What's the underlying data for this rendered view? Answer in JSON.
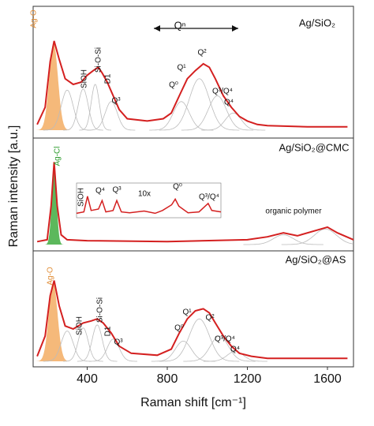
{
  "chart_data": [
    {
      "type": "line",
      "title": "Ag/SiO₂",
      "y_label": "Raman intensity [a.u.]",
      "xlim": [
        130,
        1730
      ],
      "ylim": [
        0,
        100
      ],
      "color": "#d42020",
      "x": [
        150,
        190,
        215,
        235,
        260,
        290,
        330,
        370,
        400,
        430,
        455,
        475,
        500,
        530,
        560,
        600,
        700,
        780,
        820,
        860,
        900,
        940,
        980,
        1010,
        1040,
        1080,
        1120,
        1160,
        1200,
        1250,
        1300,
        1500,
        1700
      ],
      "values": [
        5,
        20,
        60,
        78,
        62,
        45,
        40,
        42,
        48,
        52,
        55,
        50,
        42,
        30,
        18,
        10,
        8,
        10,
        15,
        30,
        45,
        52,
        58,
        55,
        45,
        30,
        20,
        12,
        8,
        5,
        4,
        3,
        3
      ],
      "components": [
        {
          "center": 232,
          "height": 76,
          "width": 22,
          "color": "#f5b97a"
        },
        {
          "center": 300,
          "height": 35,
          "width": 30,
          "color": "#bbbbbb"
        },
        {
          "center": 380,
          "height": 36,
          "width": 25,
          "color": "#bbbbbb"
        },
        {
          "center": 440,
          "height": 40,
          "width": 20,
          "color": "#bbbbbb"
        },
        {
          "center": 520,
          "height": 25,
          "width": 30,
          "color": "#bbbbbb"
        },
        {
          "center": 870,
          "height": 25,
          "width": 40,
          "color": "#bbbbbb"
        },
        {
          "center": 960,
          "height": 45,
          "width": 50,
          "color": "#bbbbbb"
        },
        {
          "center": 1050,
          "height": 30,
          "width": 45,
          "color": "#bbbbbb"
        },
        {
          "center": 1130,
          "height": 15,
          "width": 40,
          "color": "#bbbbbb"
        }
      ],
      "annotations": [
        "Ag-O",
        "SiOH",
        "Si-O-Si",
        "D1",
        "Q³",
        "Qⁿ",
        "Q⁰",
        "Q¹",
        "Q²",
        "Q³/Q⁴",
        "Q⁴"
      ]
    },
    {
      "type": "line",
      "title": "Ag/SiO₂@CMC",
      "xlim": [
        130,
        1730
      ],
      "ylim": [
        0,
        100
      ],
      "color": "#d42020",
      "x": [
        150,
        200,
        220,
        235,
        250,
        270,
        300,
        400,
        800,
        1200,
        1300,
        1380,
        1450,
        1550,
        1600,
        1650,
        1730
      ],
      "values": [
        3,
        5,
        40,
        85,
        40,
        10,
        5,
        4,
        3,
        5,
        8,
        12,
        9,
        15,
        18,
        12,
        5
      ],
      "components": [
        {
          "center": 235,
          "height": 84,
          "width": 12,
          "color": "#5cb85c"
        },
        {
          "center": 1380,
          "height": 10,
          "width": 50,
          "color": "#bbbbbb"
        },
        {
          "center": 1590,
          "height": 16,
          "width": 55,
          "color": "#bbbbbb"
        }
      ],
      "annotations": [
        "Ag-Cl",
        "organic polymer"
      ],
      "inset": {
        "label": "10x",
        "xlim": [
          330,
          1120
        ],
        "ylim": [
          0,
          100
        ],
        "x": [
          330,
          370,
          390,
          410,
          450,
          470,
          490,
          530,
          550,
          575,
          620,
          700,
          760,
          800,
          850,
          870,
          890,
          940,
          1000,
          1050,
          1070,
          1120
        ],
        "values": [
          10,
          15,
          70,
          20,
          25,
          55,
          15,
          20,
          55,
          15,
          12,
          18,
          10,
          20,
          40,
          60,
          35,
          12,
          15,
          45,
          20,
          15
        ],
        "annotations": [
          "SiOH",
          "Q⁴",
          "Q³",
          "Q⁰",
          "Q³/Q⁴"
        ]
      }
    },
    {
      "type": "line",
      "title": "Ag/SiO₂@AS",
      "x_label": "Raman shift [cm⁻¹]",
      "xlim": [
        130,
        1730
      ],
      "ylim": [
        0,
        100
      ],
      "color": "#d42020",
      "xticks": [
        400,
        800,
        1200,
        1600
      ],
      "x": [
        150,
        190,
        215,
        235,
        260,
        290,
        330,
        380,
        420,
        450,
        480,
        520,
        560,
        620,
        750,
        820,
        860,
        900,
        940,
        980,
        1010,
        1040,
        1080,
        1120,
        1160,
        1220,
        1300,
        1700
      ],
      "values": [
        5,
        25,
        65,
        80,
        55,
        35,
        32,
        38,
        40,
        42,
        38,
        28,
        15,
        8,
        6,
        12,
        28,
        42,
        50,
        52,
        48,
        38,
        25,
        15,
        8,
        5,
        3,
        3
      ],
      "components": [
        {
          "center": 230,
          "height": 78,
          "width": 22,
          "color": "#f5b97a"
        },
        {
          "center": 300,
          "height": 30,
          "width": 30,
          "color": "#bbbbbb"
        },
        {
          "center": 380,
          "height": 33,
          "width": 25,
          "color": "#bbbbbb"
        },
        {
          "center": 450,
          "height": 36,
          "width": 25,
          "color": "#bbbbbb"
        },
        {
          "center": 530,
          "height": 22,
          "width": 30,
          "color": "#bbbbbb"
        },
        {
          "center": 880,
          "height": 20,
          "width": 40,
          "color": "#bbbbbb"
        },
        {
          "center": 960,
          "height": 42,
          "width": 50,
          "color": "#bbbbbb"
        },
        {
          "center": 1060,
          "height": 25,
          "width": 45,
          "color": "#bbbbbb"
        },
        {
          "center": 1140,
          "height": 10,
          "width": 40,
          "color": "#bbbbbb"
        }
      ],
      "annotations": [
        "Ag-O",
        "SiOH",
        "Si-O-Si",
        "D1",
        "Q³",
        "Q⁰",
        "Q¹",
        "Q²",
        "Q³/Q⁴",
        "Q⁴"
      ]
    }
  ]
}
